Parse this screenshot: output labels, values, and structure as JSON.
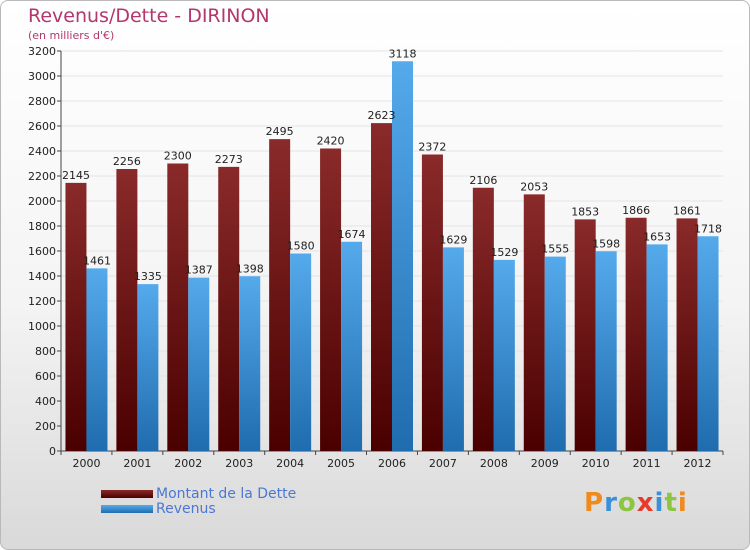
{
  "header": {
    "title": "Revenus/Dette - DIRINON",
    "subtitle": "(en milliers d'€)"
  },
  "colors": {
    "debt": "#7a1616",
    "revenue": "#4b9fe0"
  },
  "legend": {
    "debt_label": "Montant de la Dette",
    "revenue_label": "Revenus"
  },
  "logo": {
    "text": "Proxiti",
    "colors": [
      "#f08a1c",
      "#3b8fd8",
      "#8cc63f",
      "#e83a2a",
      "#3b8fd8",
      "#8cc63f",
      "#f08a1c"
    ]
  },
  "chart_data": {
    "type": "bar",
    "title": "Revenus/Dette - DIRINON",
    "subtitle": "(en milliers d'€)",
    "categories": [
      "2000",
      "2001",
      "2002",
      "2003",
      "2004",
      "2005",
      "2006",
      "2007",
      "2008",
      "2009",
      "2010",
      "2011",
      "2012"
    ],
    "series": [
      {
        "name": "Montant de la Dette",
        "values": [
          2145,
          2256,
          2300,
          2273,
          2495,
          2420,
          2623,
          2372,
          2106,
          2053,
          1853,
          1866,
          1861
        ]
      },
      {
        "name": "Revenus",
        "values": [
          1461,
          1335,
          1387,
          1398,
          1580,
          1674,
          3118,
          1629,
          1529,
          1555,
          1598,
          1653,
          1718
        ]
      }
    ],
    "ylim": [
      0,
      3200
    ],
    "yticks": [
      0,
      200,
      400,
      600,
      800,
      1000,
      1200,
      1400,
      1600,
      1800,
      2000,
      2200,
      2400,
      2600,
      2800,
      3000,
      3200
    ],
    "grid": true,
    "legend_position": "bottom-left"
  }
}
